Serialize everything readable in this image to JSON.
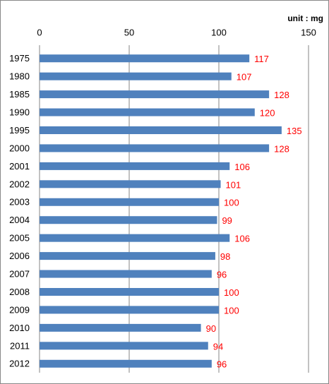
{
  "chart_data": {
    "type": "bar",
    "orientation": "horizontal",
    "annotation": "unit : mg",
    "categories": [
      "1975",
      "1980",
      "1985",
      "1990",
      "1995",
      "2000",
      "2001",
      "2002",
      "2003",
      "2004",
      "2005",
      "2006",
      "2007",
      "2008",
      "2009",
      "2010",
      "2011",
      "2012"
    ],
    "values": [
      117,
      107,
      128,
      120,
      135,
      128,
      106,
      101,
      100,
      99,
      106,
      98,
      96,
      100,
      100,
      90,
      94,
      96
    ],
    "color": "#4f81bd",
    "label_color": "#ff0000",
    "xlim": [
      0,
      150
    ],
    "xticks": [
      0,
      50,
      100,
      150
    ],
    "grid": true
  }
}
